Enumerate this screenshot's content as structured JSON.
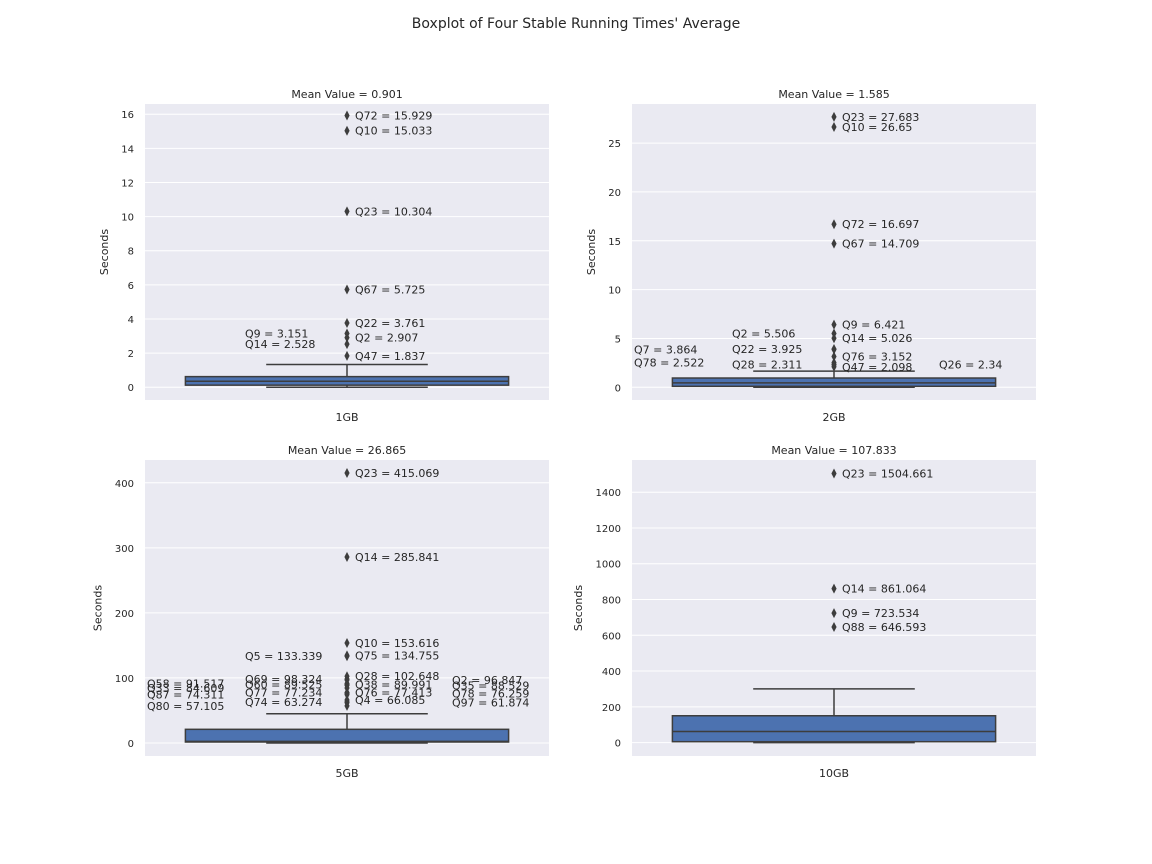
{
  "figure": {
    "title": "Boxplot of Four Stable Running Times' Average"
  },
  "colors": {
    "background": "#eaeaf2",
    "grid": "#ffffff",
    "box": "#4c72b0",
    "line": "#3d3d3d"
  },
  "chart_data": [
    {
      "type": "box",
      "title": "Mean Value = 0.901",
      "category": "1GB",
      "ylabel": "Seconds",
      "ylim": [
        -0.75,
        16.6
      ],
      "yticks": [
        0,
        2,
        4,
        6,
        8,
        10,
        12,
        14,
        16
      ],
      "box": {
        "whisker_low": 0.0,
        "q1": 0.12,
        "median": 0.35,
        "q3": 0.62,
        "whisker_high": 1.33
      },
      "outliers": [
        {
          "y": 15.929,
          "label": "Q72 = 15.929",
          "side": "right"
        },
        {
          "y": 15.033,
          "label": "Q10 = 15.033",
          "side": "right"
        },
        {
          "y": 10.304,
          "label": "Q23 = 10.304",
          "side": "right"
        },
        {
          "y": 5.725,
          "label": "Q67 = 5.725",
          "side": "right"
        },
        {
          "y": 3.761,
          "label": "Q22 = 3.761",
          "side": "right"
        },
        {
          "y": 3.151,
          "label": "Q9 = 3.151",
          "side": "left"
        },
        {
          "y": 2.907,
          "label": "Q2 = 2.907",
          "side": "right"
        },
        {
          "y": 2.528,
          "label": "Q14 = 2.528",
          "side": "left"
        },
        {
          "y": 1.837,
          "label": "Q47 = 1.837",
          "side": "right"
        }
      ]
    },
    {
      "type": "box",
      "title": "Mean Value = 1.585",
      "category": "2GB",
      "ylabel": "Seconds",
      "ylim": [
        -1.3,
        29.0
      ],
      "yticks": [
        0,
        5,
        10,
        15,
        20,
        25
      ],
      "box": {
        "whisker_low": 0.0,
        "q1": 0.1,
        "median": 0.45,
        "q3": 0.95,
        "whisker_high": 1.65
      },
      "outliers": [
        {
          "y": 27.683,
          "label": "Q23 = 27.683",
          "side": "right"
        },
        {
          "y": 26.65,
          "label": "Q10 = 26.65",
          "side": "right"
        },
        {
          "y": 16.697,
          "label": "Q72 = 16.697",
          "side": "right"
        },
        {
          "y": 14.709,
          "label": "Q67 = 14.709",
          "side": "right"
        },
        {
          "y": 6.421,
          "label": "Q9 = 6.421",
          "side": "right"
        },
        {
          "y": 5.506,
          "label": "Q2 = 5.506",
          "side": "left"
        },
        {
          "y": 5.026,
          "label": "Q14 = 5.026",
          "side": "right"
        },
        {
          "y": 3.925,
          "label": "Q22 = 3.925",
          "side": "left"
        },
        {
          "y": 3.864,
          "label": "Q7 = 3.864",
          "side": "far-left"
        },
        {
          "y": 3.152,
          "label": "Q76 = 3.152",
          "side": "right"
        },
        {
          "y": 2.522,
          "label": "Q78 = 2.522",
          "side": "far-left"
        },
        {
          "y": 2.34,
          "label": "Q26 = 2.34",
          "side": "far-right"
        },
        {
          "y": 2.311,
          "label": "Q28 = 2.311",
          "side": "left"
        },
        {
          "y": 2.098,
          "label": "Q47 = 2.098",
          "side": "right"
        }
      ]
    },
    {
      "type": "box",
      "title": "Mean Value = 26.865",
      "category": "5GB",
      "ylabel": "Seconds",
      "ylim": [
        -20,
        435
      ],
      "yticks": [
        0,
        100,
        200,
        300,
        400
      ],
      "box": {
        "whisker_low": 0.0,
        "q1": 1.5,
        "median": 2.5,
        "q3": 21.0,
        "whisker_high": 45.0
      },
      "outliers": [
        {
          "y": 415.069,
          "label": "Q23 = 415.069",
          "side": "right"
        },
        {
          "y": 285.841,
          "label": "Q14 = 285.841",
          "side": "right"
        },
        {
          "y": 153.616,
          "label": "Q10 = 153.616",
          "side": "right"
        },
        {
          "y": 134.755,
          "label": "Q75 = 134.755",
          "side": "right"
        },
        {
          "y": 133.339,
          "label": "Q5 = 133.339",
          "side": "left"
        },
        {
          "y": 102.648,
          "label": "Q28 = 102.648",
          "side": "right"
        },
        {
          "y": 98.324,
          "label": "Q69 = 98.324",
          "side": "left"
        },
        {
          "y": 96.847,
          "label": "Q2 = 96.847",
          "side": "far-right"
        },
        {
          "y": 91.517,
          "label": "Q58 = 91.517",
          "side": "far-left"
        },
        {
          "y": 89.991,
          "label": "Q38 = 89.991",
          "side": "right"
        },
        {
          "y": 89.525,
          "label": "Q60 = 89.525",
          "side": "left"
        },
        {
          "y": 88.529,
          "label": "Q35 = 88.529",
          "side": "far-right"
        },
        {
          "y": 84.609,
          "label": "Q33 = 84.609",
          "side": "far-left"
        },
        {
          "y": 77.413,
          "label": "Q76 = 77.413",
          "side": "right"
        },
        {
          "y": 77.234,
          "label": "Q77 = 77.234",
          "side": "left"
        },
        {
          "y": 76.259,
          "label": "Q78 = 76.259",
          "side": "far-right"
        },
        {
          "y": 74.311,
          "label": "Q87 = 74.311",
          "side": "far-left"
        },
        {
          "y": 66.085,
          "label": "Q4 = 66.085",
          "side": "right"
        },
        {
          "y": 63.274,
          "label": "Q74 = 63.274",
          "side": "left"
        },
        {
          "y": 61.874,
          "label": "Q97 = 61.874",
          "side": "far-right"
        },
        {
          "y": 57.105,
          "label": "Q80 = 57.105",
          "side": "far-left"
        }
      ]
    },
    {
      "type": "box",
      "title": "Mean Value = 107.833",
      "category": "10GB",
      "ylabel": "Seconds",
      "ylim": [
        -75,
        1580
      ],
      "yticks": [
        0,
        200,
        400,
        600,
        800,
        1000,
        1200,
        1400
      ],
      "box": {
        "whisker_low": 0.0,
        "q1": 5.0,
        "median": 62.0,
        "q3": 150.0,
        "whisker_high": 300.0
      },
      "outliers": [
        {
          "y": 1504.661,
          "label": "Q23 = 1504.661",
          "side": "right"
        },
        {
          "y": 861.064,
          "label": "Q14 = 861.064",
          "side": "right"
        },
        {
          "y": 723.534,
          "label": "Q9 = 723.534",
          "side": "right"
        },
        {
          "y": 646.593,
          "label": "Q88 = 646.593",
          "side": "right"
        }
      ]
    }
  ]
}
